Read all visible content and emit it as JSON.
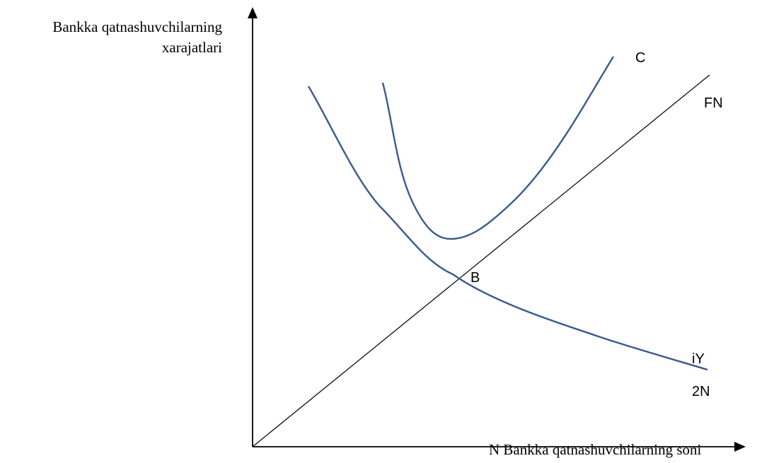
{
  "axes": {
    "y_label_line1": "Bankka qatnashuvchilarning",
    "y_label_line2": "xarajatlari",
    "x_label": "N Bankka qatnashuvchilarning soni"
  },
  "curves": {
    "c_label": "C",
    "fn_label": "FN",
    "iy_label": "iY",
    "n2_label": "2N"
  },
  "points": {
    "b_label": "B"
  },
  "colors": {
    "curve": "#3b5a8c",
    "axis": "#000000"
  }
}
